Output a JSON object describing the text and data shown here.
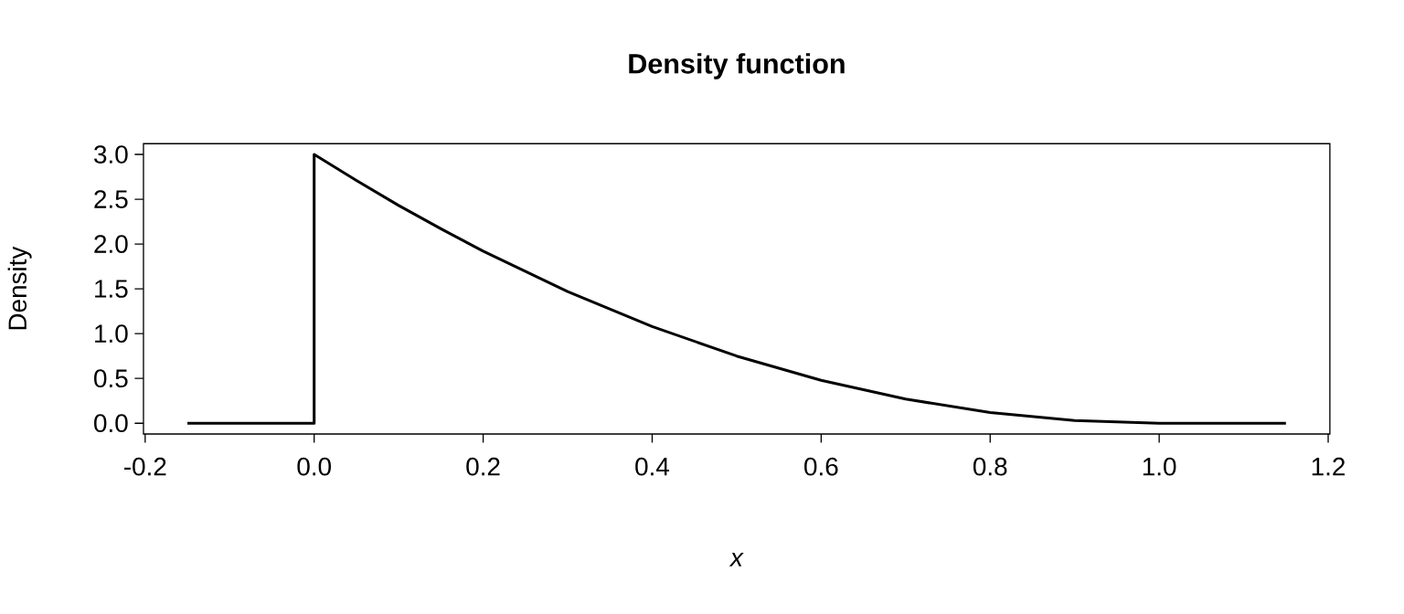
{
  "chart_data": {
    "type": "line",
    "title": "Density function",
    "xlabel": "x",
    "ylabel": "Density",
    "x": [
      -0.15,
      0,
      0,
      0.05,
      0.1,
      0.15,
      0.2,
      0.3,
      0.4,
      0.5,
      0.6,
      0.7,
      0.8,
      0.9,
      1.0,
      1.15
    ],
    "values": [
      0,
      0,
      3.0,
      2.71,
      2.43,
      2.17,
      1.92,
      1.47,
      1.08,
      0.75,
      0.48,
      0.27,
      0.12,
      0.03,
      0,
      0
    ],
    "color": "#000000",
    "marker": "none",
    "line_style": "solid",
    "grid": false,
    "xlim": [
      -0.202,
      1.202
    ],
    "ylim": [
      -0.12,
      3.12
    ],
    "xticks": [
      {
        "value": -0.2,
        "label": "-0.2"
      },
      {
        "value": 0,
        "label": "0.0"
      },
      {
        "value": 0.2,
        "label": "0.2"
      },
      {
        "value": 0.4,
        "label": "0.4"
      },
      {
        "value": 0.6,
        "label": "0.6"
      },
      {
        "value": 0.8,
        "label": "0.8"
      },
      {
        "value": 1.0,
        "label": "1.0"
      },
      {
        "value": 1.2,
        "label": "1.2"
      }
    ],
    "yticks": [
      {
        "value": 0,
        "label": "0.0"
      },
      {
        "value": 0.5,
        "label": "0.5"
      },
      {
        "value": 1.0,
        "label": "1.0"
      },
      {
        "value": 1.5,
        "label": "1.5"
      },
      {
        "value": 2.0,
        "label": "2.0"
      },
      {
        "value": 2.5,
        "label": "2.5"
      },
      {
        "value": 3.0,
        "label": "3.0"
      }
    ]
  }
}
